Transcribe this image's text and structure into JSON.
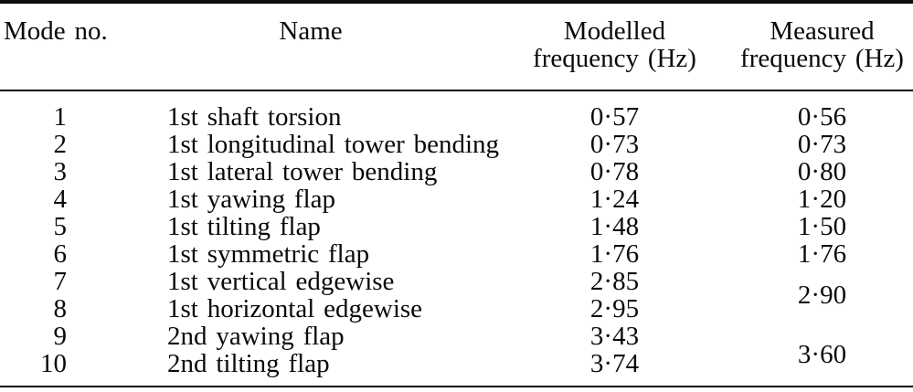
{
  "table": {
    "title": "Modal frequency comparison table",
    "columns": {
      "mode": "Mode no.",
      "name": "Name",
      "modelled": "Modelled\nfrequency (Hz)",
      "measured": "Measured\nfrequency (Hz)"
    },
    "decimal_separator": "·",
    "rows": [
      {
        "mode": "1",
        "name": "1st shaft torsion",
        "modelled": "0·57",
        "measured": "0·56"
      },
      {
        "mode": "2",
        "name": "1st longitudinal tower bending",
        "modelled": "0·73",
        "measured": "0·73"
      },
      {
        "mode": "3",
        "name": "1st lateral tower bending",
        "modelled": "0·78",
        "measured": "0·80"
      },
      {
        "mode": "4",
        "name": "1st yawing flap",
        "modelled": "1·24",
        "measured": "1·20"
      },
      {
        "mode": "5",
        "name": "1st tilting flap",
        "modelled": "1·48",
        "measured": "1·50"
      },
      {
        "mode": "6",
        "name": "1st symmetric flap",
        "modelled": "1·76",
        "measured": "1·76"
      },
      {
        "mode": "7",
        "name": "1st vertical edgewise",
        "modelled": "2·85",
        "measured": "2·90",
        "measured_rowspan": 2
      },
      {
        "mode": "8",
        "name": "1st horizontal edgewise",
        "modelled": "2·95",
        "measured": null
      },
      {
        "mode": "9",
        "name": "2nd yawing flap",
        "modelled": "3·43",
        "measured": "3·60",
        "measured_rowspan": 2
      },
      {
        "mode": "10",
        "name": "2nd tilting flap",
        "modelled": "3·74",
        "measured": null
      }
    ],
    "colors": {
      "text": "#0a0a0a",
      "rule": "#0d0d0d",
      "background": "#ffffff"
    }
  }
}
